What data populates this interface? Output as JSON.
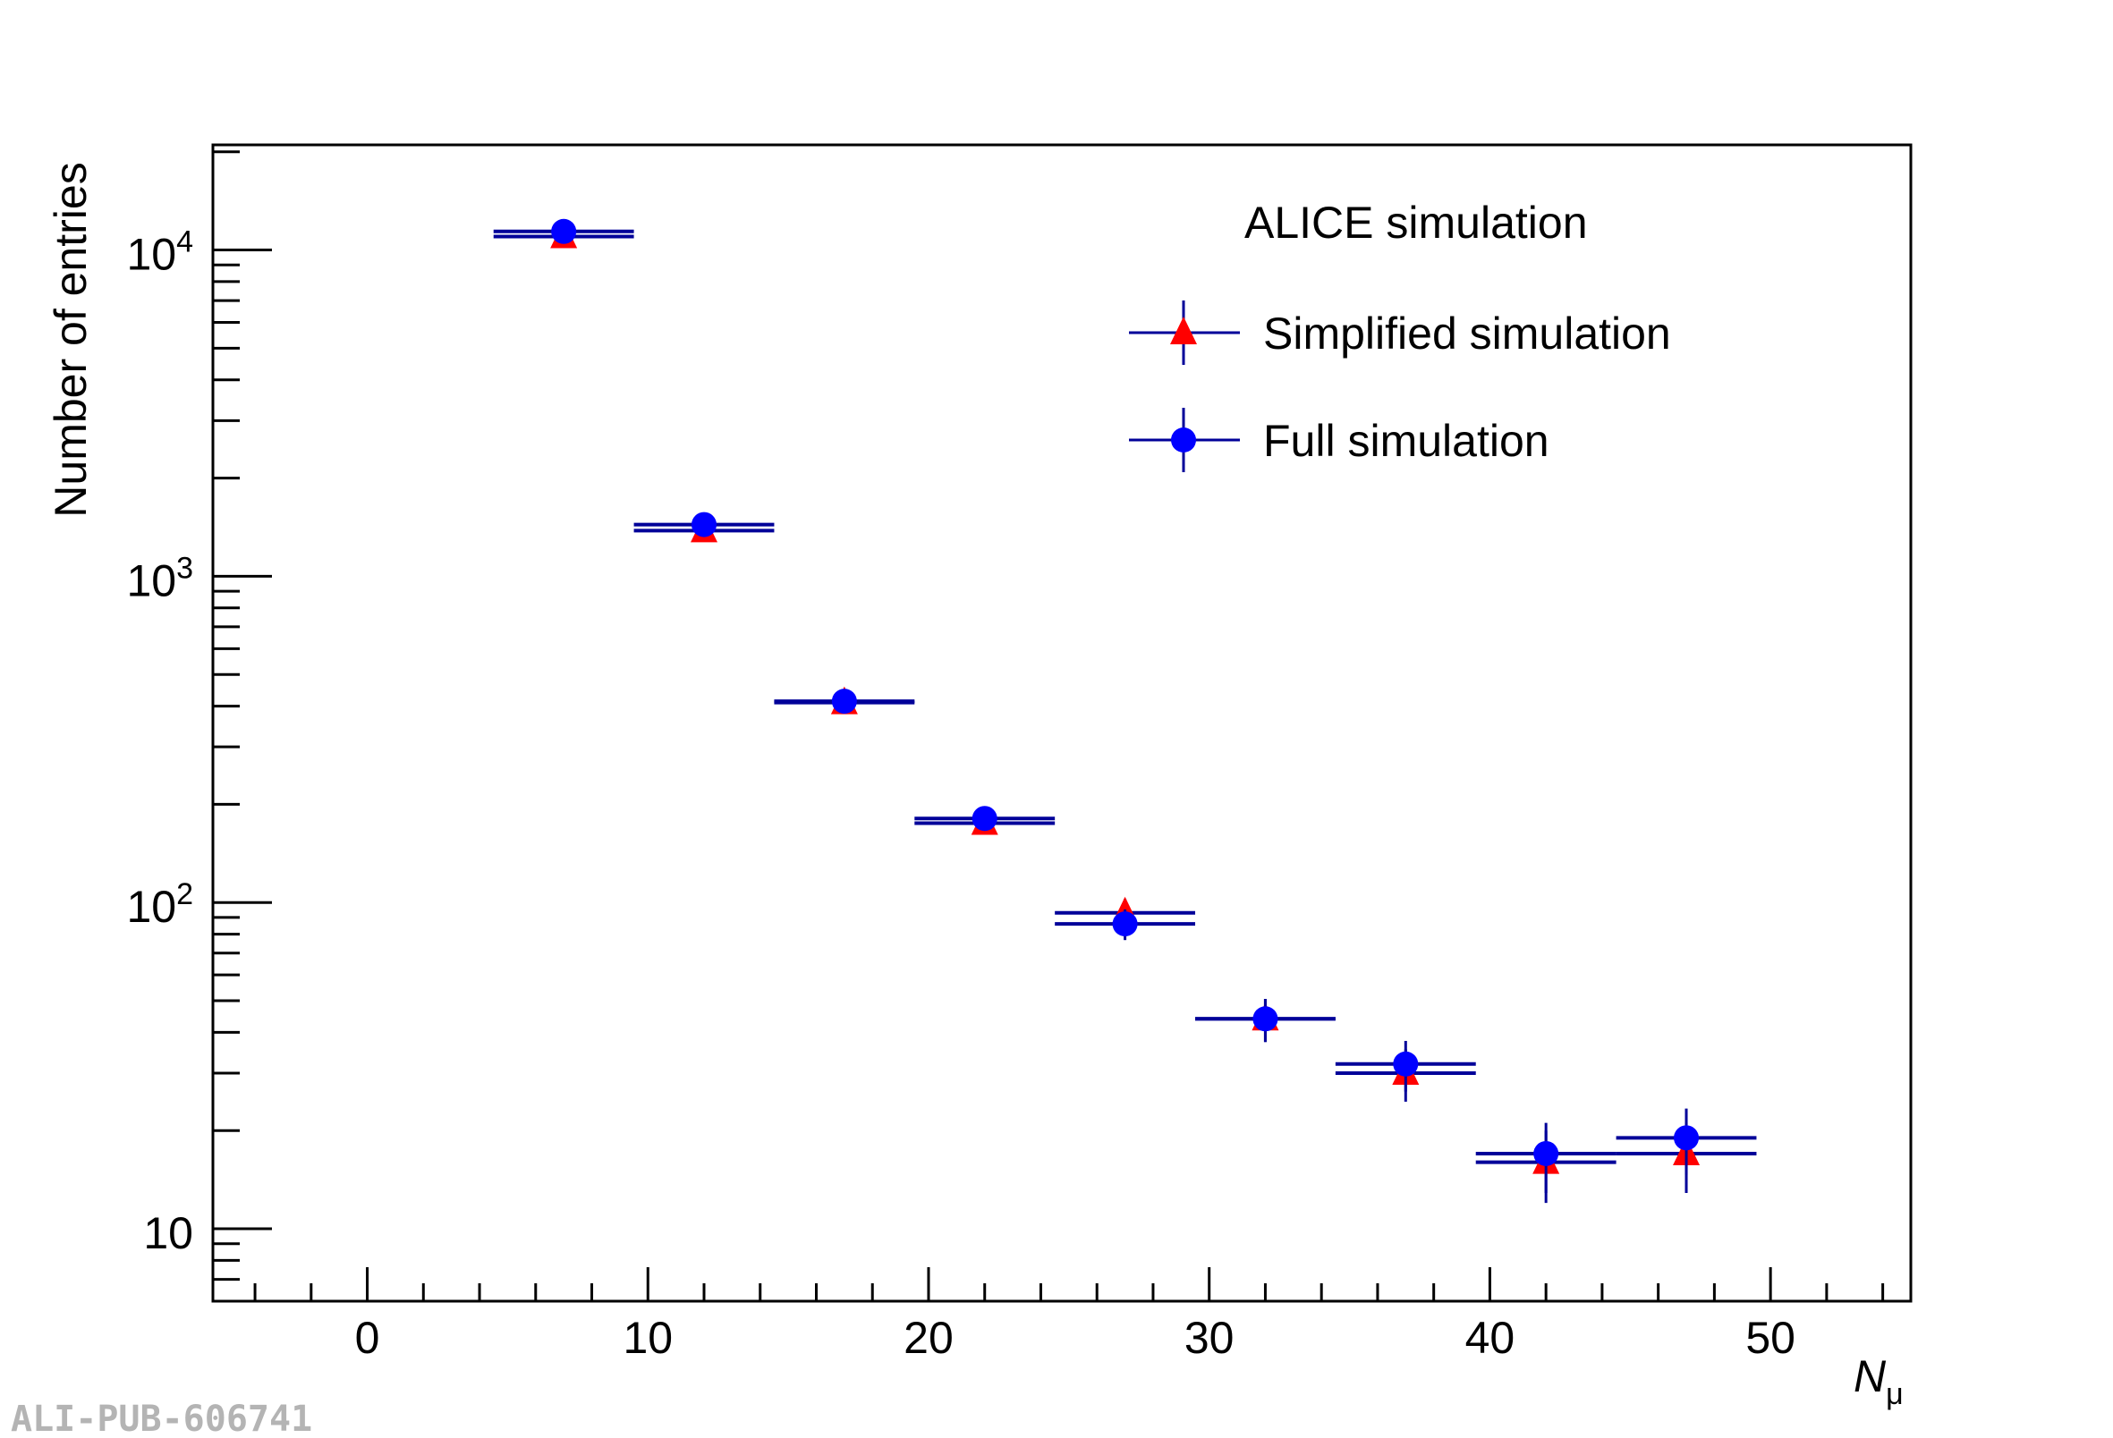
{
  "chart_data": {
    "type": "scatter",
    "title": "",
    "xlabel": "N",
    "xlabel_sub": "μ",
    "ylabel": "Number of entries",
    "xlim": [
      -5.5,
      55
    ],
    "ylim": [
      6,
      21000
    ],
    "yscale": "log",
    "x_ticks": [
      "0",
      "10",
      "20",
      "30",
      "40",
      "50"
    ],
    "y_ticks": [
      {
        "base": "10",
        "exp": "4"
      },
      {
        "base": "10",
        "exp": "3"
      },
      {
        "base": "10",
        "exp": "2"
      },
      {
        "base": "10",
        "exp": ""
      }
    ],
    "bin_width": 5,
    "grid": false,
    "legend": {
      "placement": "top-right",
      "header": "ALICE simulation"
    },
    "series": [
      {
        "name": "Simplified simulation",
        "marker": "triangle",
        "color": "#ff0000",
        "line_color": "#000099",
        "x": [
          7,
          12,
          17,
          22,
          27,
          32,
          37,
          42,
          47
        ],
        "y": [
          11000,
          1380,
          410,
          175,
          93,
          44,
          30,
          16,
          17
        ]
      },
      {
        "name": "Full simulation",
        "marker": "circle",
        "color": "#0000ff",
        "line_color": "#000099",
        "x": [
          7,
          12,
          17,
          22,
          27,
          32,
          37,
          42,
          47
        ],
        "y": [
          11400,
          1440,
          414,
          181,
          86,
          44,
          32,
          17,
          19
        ]
      }
    ]
  },
  "watermark": "ALI-PUB-606741"
}
